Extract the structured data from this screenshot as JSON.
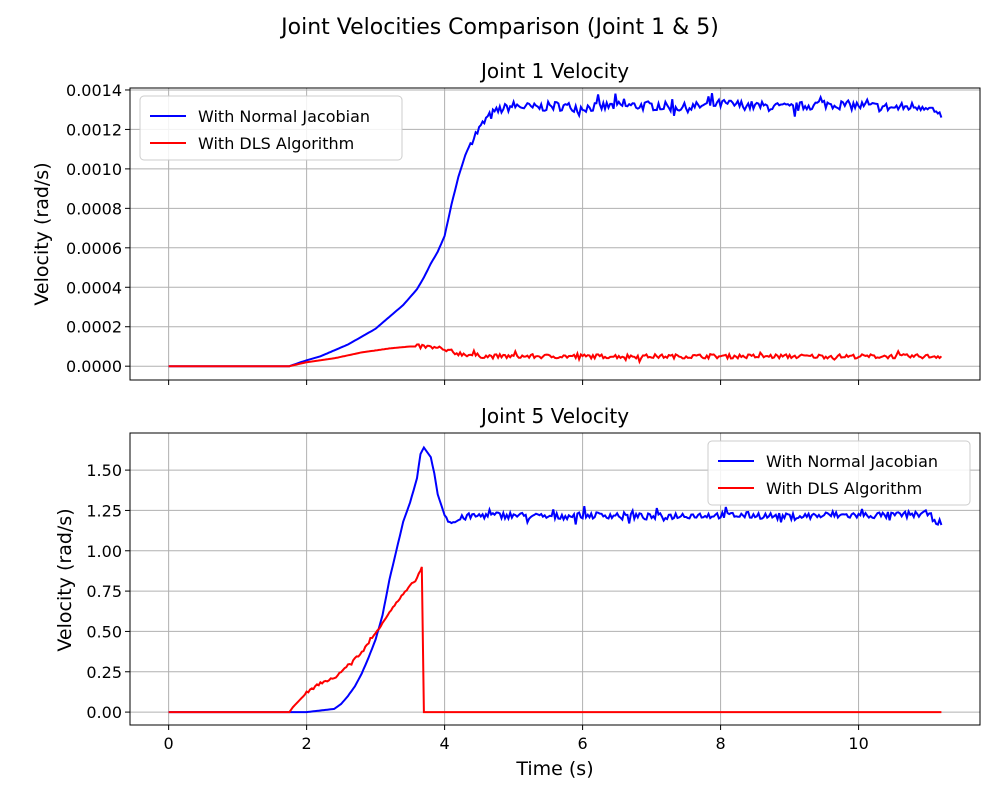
{
  "figure": {
    "suptitle": "Joint Velocities Comparison (Joint 1 & 5)"
  },
  "chart_data": [
    {
      "type": "line",
      "title": "Joint 1 Velocity",
      "xlabel": "",
      "ylabel": "Velocity (rad/s)",
      "xlim": [
        -0.56,
        11.76
      ],
      "ylim": [
        -7e-05,
        0.00141
      ],
      "xticks": [
        0,
        2,
        4,
        6,
        8,
        10
      ],
      "xtick_labels_visible": false,
      "yticks": [
        0.0,
        0.0002,
        0.0004,
        0.0006,
        0.0008,
        0.001,
        0.0012,
        0.0014
      ],
      "ytick_labels": [
        "0.0000",
        "0.0002",
        "0.0004",
        "0.0006",
        "0.0008",
        "0.0010",
        "0.0012",
        "0.0014"
      ],
      "grid": true,
      "legend_position": "upper-left",
      "series": [
        {
          "name": "With Normal Jacobian",
          "color": "#0000ff",
          "x": [
            0,
            0.5,
            1.0,
            1.5,
            1.75,
            2.0,
            2.2,
            2.4,
            2.6,
            2.8,
            3.0,
            3.2,
            3.4,
            3.6,
            3.7,
            3.8,
            3.9,
            4.0,
            4.1,
            4.2,
            4.3,
            4.4,
            4.5,
            4.6,
            4.7,
            4.8,
            4.9,
            5.0,
            5.3,
            5.6,
            6.0,
            6.5,
            7.0,
            7.5,
            8.0,
            8.5,
            9.0,
            9.5,
            10.0,
            10.5,
            11.0,
            11.2
          ],
          "y": [
            0,
            0,
            0,
            0,
            0,
            3e-05,
            5e-05,
            8e-05,
            0.00011,
            0.00015,
            0.00019,
            0.00025,
            0.00031,
            0.00039,
            0.00045,
            0.00052,
            0.00058,
            0.00066,
            0.00082,
            0.00096,
            0.00107,
            0.00115,
            0.0012,
            0.00125,
            0.00128,
            0.0013,
            0.00131,
            0.00132,
            0.00131,
            0.00132,
            0.00131,
            0.00132,
            0.00132,
            0.00131,
            0.00133,
            0.00132,
            0.00131,
            0.00133,
            0.00132,
            0.00131,
            0.00132,
            0.00126
          ],
          "noise": 4e-05,
          "noise_from": 4.4
        },
        {
          "name": "With DLS Algorithm",
          "color": "#ff0000",
          "x": [
            0,
            0.5,
            1.0,
            1.5,
            1.75,
            2.0,
            2.4,
            2.8,
            3.2,
            3.5,
            3.7,
            3.9,
            4.1,
            4.3,
            4.6,
            5.0,
            6.0,
            7.0,
            8.0,
            9.0,
            10.0,
            11.0,
            11.2
          ],
          "y": [
            0,
            0,
            0,
            0,
            0,
            2e-05,
            4e-05,
            7e-05,
            9e-05,
            0.0001,
            0.0001,
            9e-05,
            7e-05,
            6e-05,
            5e-05,
            5e-05,
            5e-05,
            5e-05,
            5e-05,
            5e-05,
            5e-05,
            5e-05,
            5e-05
          ],
          "noise": 1.8e-05,
          "noise_from": 3.6
        }
      ]
    },
    {
      "type": "line",
      "title": "Joint 5 Velocity",
      "xlabel": "Time (s)",
      "ylabel": "Velocity (rad/s)",
      "xlim": [
        -0.56,
        11.76
      ],
      "ylim": [
        -0.08,
        1.73
      ],
      "xticks": [
        0,
        2,
        4,
        6,
        8,
        10
      ],
      "xtick_labels": [
        "0",
        "2",
        "4",
        "6",
        "8",
        "10"
      ],
      "yticks": [
        0.0,
        0.25,
        0.5,
        0.75,
        1.0,
        1.25,
        1.5
      ],
      "ytick_labels": [
        "0.00",
        "0.25",
        "0.50",
        "0.75",
        "1.00",
        "1.25",
        "1.50"
      ],
      "grid": true,
      "legend_position": "upper-right",
      "series": [
        {
          "name": "With Normal Jacobian",
          "color": "#0000ff",
          "x": [
            0,
            0.5,
            1.0,
            1.5,
            1.75,
            2.0,
            2.2,
            2.4,
            2.5,
            2.6,
            2.7,
            2.8,
            2.9,
            3.0,
            3.1,
            3.2,
            3.3,
            3.4,
            3.5,
            3.6,
            3.65,
            3.7,
            3.8,
            3.85,
            3.9,
            4.0,
            4.1,
            4.3,
            4.6,
            5.0,
            5.5,
            6.0,
            6.5,
            7.0,
            7.5,
            8.0,
            8.5,
            9.0,
            9.5,
            10.0,
            10.5,
            11.0,
            11.2
          ],
          "y": [
            0,
            0,
            0,
            0,
            0,
            0,
            0.01,
            0.02,
            0.05,
            0.1,
            0.16,
            0.24,
            0.34,
            0.45,
            0.6,
            0.82,
            1.0,
            1.18,
            1.3,
            1.45,
            1.6,
            1.64,
            1.58,
            1.48,
            1.35,
            1.22,
            1.17,
            1.21,
            1.22,
            1.22,
            1.21,
            1.22,
            1.22,
            1.21,
            1.22,
            1.22,
            1.22,
            1.21,
            1.22,
            1.22,
            1.22,
            1.23,
            1.16
          ],
          "noise": 0.035,
          "noise_from": 4.05
        },
        {
          "name": "With DLS Algorithm",
          "color": "#ff0000",
          "x": [
            0,
            0.5,
            1.0,
            1.5,
            1.75,
            1.8,
            2.0,
            2.2,
            2.4,
            2.6,
            2.8,
            3.0,
            3.2,
            3.4,
            3.6,
            3.65,
            3.67,
            3.7,
            4.0,
            5.0,
            6.0,
            8.0,
            10.0,
            11.2
          ],
          "y": [
            0,
            0,
            0,
            0,
            0.0,
            0.03,
            0.12,
            0.18,
            0.21,
            0.29,
            0.37,
            0.49,
            0.62,
            0.73,
            0.83,
            0.88,
            0.9,
            0.0,
            0.0,
            0.0,
            0.0,
            0.0,
            0.0,
            0.0
          ],
          "noise": 0.012,
          "noise_from": 2.0,
          "noise_to": 3.65
        }
      ]
    }
  ]
}
